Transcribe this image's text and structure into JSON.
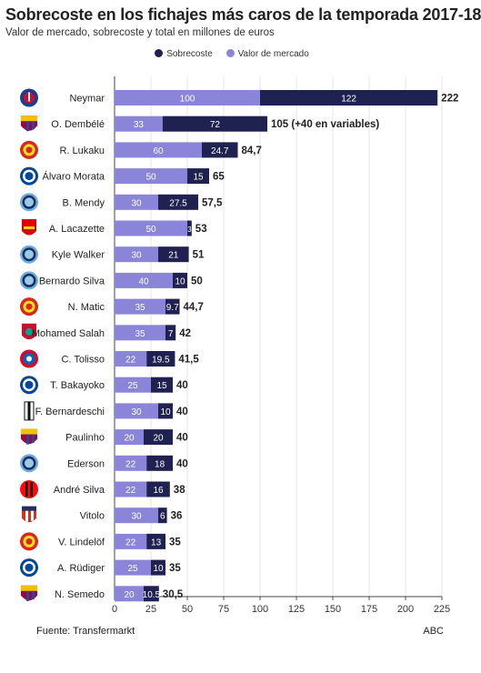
{
  "header": {
    "title": "Sobrecoste en los fichajes más caros de la temporada 2017-18",
    "subtitle": "Valor de mercado, sobrecoste y total en millones de euros"
  },
  "legend": [
    {
      "label": "Sobrecoste",
      "color": "#1f2150"
    },
    {
      "label": "Valor de mercado",
      "color": "#8a85d8"
    }
  ],
  "footer": {
    "source": "Fuente: Transfermarkt",
    "brand": "ABC"
  },
  "chart_data": {
    "type": "bar",
    "orientation": "horizontal",
    "stacked": true,
    "title": "Sobrecoste en los fichajes más caros de la temporada 2017-18",
    "subtitle": "Valor de mercado, sobrecoste y total en millones de euros",
    "xlim": [
      0,
      225
    ],
    "xticks": [
      0,
      25,
      50,
      75,
      100,
      125,
      150,
      175,
      200,
      225
    ],
    "grid": true,
    "legend_position": "top-center",
    "categories": [
      "Neymar",
      "O. Dembélé",
      "R. Lukaku",
      "Álvaro Morata",
      "B. Mendy",
      "A. Lacazette",
      "Kyle Walker",
      "Bernardo Silva",
      "N. Matic",
      "Mohamed Salah",
      "C. Tolisso",
      "T. Bakayoko",
      "F. Bernardeschi",
      "Paulinho",
      "Ederson",
      "André Silva",
      "Vitolo",
      "V. Lindelöf",
      "A. Rüdiger",
      "N. Semedo"
    ],
    "clubs": [
      "psg-crest-icon",
      "barcelona-crest-icon",
      "manchester-united-crest-icon",
      "chelsea-crest-icon",
      "manchester-city-crest-icon",
      "arsenal-crest-icon",
      "manchester-city-crest-icon",
      "manchester-city-crest-icon",
      "manchester-united-crest-icon",
      "liverpool-crest-icon",
      "bayern-crest-icon",
      "chelsea-crest-icon",
      "juventus-crest-icon",
      "barcelona-crest-icon",
      "manchester-city-crest-icon",
      "milan-crest-icon",
      "atletico-crest-icon",
      "manchester-united-crest-icon",
      "chelsea-crest-icon",
      "barcelona-crest-icon"
    ],
    "series": [
      {
        "name": "Valor de mercado",
        "color": "#8a85d8",
        "values": [
          100,
          33,
          60,
          50,
          30,
          50,
          30,
          40,
          35,
          35,
          22,
          25,
          30,
          20,
          22,
          22,
          30,
          22,
          25,
          20
        ],
        "labels": [
          "100",
          "33",
          "60",
          "50",
          "30",
          "50",
          "30",
          "40",
          "35",
          "35",
          "22",
          "25",
          "30",
          "20",
          "22",
          "22",
          "30",
          "22",
          "25",
          "20"
        ]
      },
      {
        "name": "Sobrecoste",
        "color": "#1f2150",
        "values": [
          122,
          72,
          24.7,
          15,
          27.5,
          3,
          21,
          10,
          9.7,
          7,
          19.5,
          15,
          10,
          20,
          18,
          16,
          6,
          13,
          10,
          10.5
        ],
        "labels": [
          "122",
          "72",
          "24.7",
          "15",
          "27.5",
          "3",
          "21",
          "10",
          "9.7",
          "7",
          "19.5",
          "15",
          "10",
          "20",
          "18",
          "16",
          "6",
          "13",
          "10",
          "10.5"
        ]
      }
    ],
    "totals": [
      "222",
      "105 (+40 en variables)",
      "84,7",
      "65",
      "57,5",
      "53",
      "51",
      "50",
      "44,7",
      "42",
      "41,5",
      "40",
      "40",
      "40",
      "40",
      "38",
      "36",
      "35",
      "35",
      "30,5"
    ]
  }
}
